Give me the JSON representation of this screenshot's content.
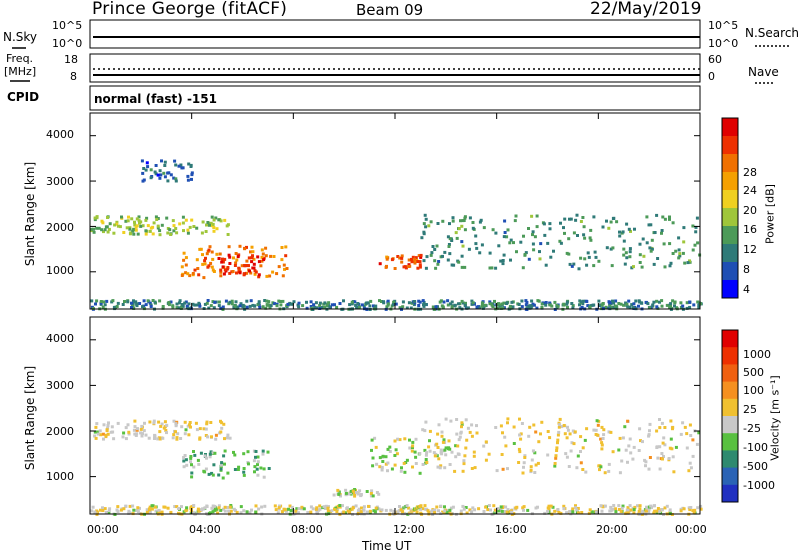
{
  "header": {
    "site": "Prince George (fitACF)",
    "beam": "Beam 09",
    "date": "22/May/2019"
  },
  "strips": {
    "nsky_label": "N.Sky",
    "nsky_ticks": [
      "10^5",
      "10^0"
    ],
    "nsearch_label": "N.Search",
    "nsearch_ticks": [
      "10^5",
      "10^0"
    ],
    "freq_label": "Freq.",
    "freq_unit": "[MHz]",
    "freq_ticks": [
      "18",
      "8"
    ],
    "nave_label": "Nave",
    "nave_ticks": [
      "60",
      "0"
    ],
    "cpid_label": "CPID",
    "cpid_text": "normal (fast) -151"
  },
  "panels": {
    "ylabel": "Slant Range [km]",
    "y_ticks": [
      "4000",
      "3000",
      "2000",
      "1000"
    ],
    "xlabel": "Time UT",
    "x_ticks": [
      "00:00",
      "04:00",
      "08:00",
      "12:00",
      "16:00",
      "20:00",
      "00:00"
    ]
  },
  "power_bar": {
    "label": "Power [dB]",
    "ticks": [
      "28",
      "24",
      "20",
      "16",
      "12",
      "8",
      "4"
    ],
    "colors": [
      "#0000ff",
      "#1f4fb4",
      "#2f7a78",
      "#4c9a58",
      "#9fc63a",
      "#f0d020",
      "#f5a000",
      "#f07000",
      "#ee3000",
      "#e00000"
    ]
  },
  "velocity_bar": {
    "label": "Velocity [m s⁻¹]",
    "ticks": [
      "1000",
      "500",
      "100",
      "25",
      "-25",
      "-100",
      "-500",
      "-1000"
    ],
    "colors": [
      "#2030c0",
      "#2a63b5",
      "#2e8a6f",
      "#58c040",
      "#c8c8c8",
      "#f0c030",
      "#f59020",
      "#f06010",
      "#ee3000",
      "#e00000"
    ]
  },
  "chart_data": {
    "type": "heatmap",
    "x_range": [
      "00:00",
      "24:00"
    ],
    "y_range_km": [
      180,
      4500
    ],
    "panels": [
      {
        "name": "Power",
        "unit": "dB",
        "scale": [
          0,
          30
        ],
        "echo_regions": [
          {
            "t_start": 0.0,
            "t_end": 5.5,
            "range_km": [
              1850,
              2250
            ],
            "value": 13
          },
          {
            "t_start": 3.5,
            "t_end": 7.8,
            "range_km": [
              900,
              1600
            ],
            "value": 22
          },
          {
            "t_start": 5.0,
            "t_end": 6.8,
            "range_km": [
              950,
              1400
            ],
            "value": 27
          },
          {
            "t_start": 11.3,
            "t_end": 13.0,
            "range_km": [
              1100,
              1400
            ],
            "value": 24
          },
          {
            "t_start": 13.0,
            "t_end": 24.0,
            "range_km": [
              1100,
              2300
            ],
            "value": 9
          },
          {
            "t_start": 2.0,
            "t_end": 4.0,
            "range_km": [
              3000,
              3500
            ],
            "value": 6
          },
          {
            "t_start": 0.0,
            "t_end": 24.0,
            "range_km": [
              200,
              400
            ],
            "value": 8
          }
        ]
      },
      {
        "name": "Velocity",
        "unit": "m s^-1",
        "scale": [
          -1000,
          1000
        ],
        "echo_regions": [
          {
            "t_start": 0.0,
            "t_end": 5.5,
            "range_km": [
              1850,
              2250
            ],
            "value": 0
          },
          {
            "t_start": 3.5,
            "t_end": 7.0,
            "range_km": [
              1000,
              1600
            ],
            "value": -300
          },
          {
            "t_start": 11.0,
            "t_end": 14.5,
            "range_km": [
              1100,
              1900
            ],
            "value": -150
          },
          {
            "t_start": 9.5,
            "t_end": 11.3,
            "range_km": [
              600,
              750
            ],
            "value": -100
          },
          {
            "t_start": 13.0,
            "t_end": 24.0,
            "range_km": [
              1100,
              2300
            ],
            "value": 0
          },
          {
            "t_start": 0.0,
            "t_end": 24.0,
            "range_km": [
              200,
              400
            ],
            "value": -50
          }
        ]
      }
    ]
  }
}
